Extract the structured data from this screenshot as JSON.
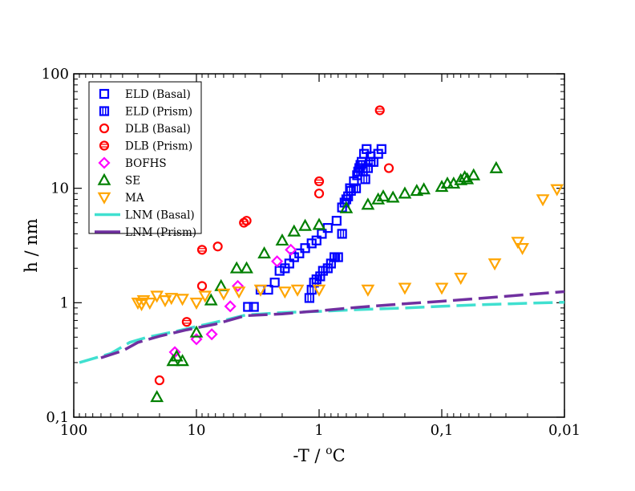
{
  "chart_data": {
    "type": "scatter",
    "xlabel": "-T /  ",
    "xlabel_sup": "o",
    "xlabel_unit": "C",
    "ylabel": "h / nm",
    "x_scale": "log",
    "x_reversed": true,
    "y_scale": "log",
    "xlim": [
      100,
      0.01
    ],
    "ylim": [
      0.1,
      100
    ],
    "xticks": [
      100,
      10,
      1,
      0.1,
      0.01
    ],
    "xtick_labels": [
      "100",
      "10",
      "1",
      "0,1",
      "0,01"
    ],
    "yticks": [
      0.1,
      1,
      10,
      100
    ],
    "ytick_labels": [
      "0,1",
      "1",
      "10",
      "100"
    ],
    "legend_position": "top-left",
    "series": [
      {
        "name": "ELD (Basal)",
        "color": "#0000ff",
        "marker": "square-open",
        "points": [
          [
            3.8,
            0.92
          ],
          [
            3.4,
            0.92
          ],
          [
            3.0,
            1.3
          ],
          [
            2.6,
            1.3
          ],
          [
            2.3,
            1.5
          ],
          [
            2.1,
            1.9
          ],
          [
            1.9,
            2.0
          ],
          [
            1.75,
            2.2
          ],
          [
            1.6,
            2.5
          ],
          [
            1.45,
            2.7
          ],
          [
            1.3,
            3.0
          ],
          [
            1.15,
            3.3
          ],
          [
            1.05,
            3.5
          ],
          [
            0.95,
            4.0
          ],
          [
            0.85,
            4.5
          ],
          [
            0.72,
            5.2
          ],
          [
            0.65,
            6.8
          ],
          [
            0.6,
            8.0
          ],
          [
            0.56,
            10.0
          ],
          [
            0.52,
            11.5
          ],
          [
            0.49,
            13.0
          ],
          [
            0.47,
            15.0
          ],
          [
            0.45,
            17.0
          ],
          [
            0.43,
            20.0
          ],
          [
            0.41,
            22.0
          ],
          [
            0.38,
            19.0
          ],
          [
            0.36,
            17.0
          ],
          [
            0.33,
            20.0
          ],
          [
            0.31,
            22.0
          ]
        ]
      },
      {
        "name": "ELD (Prism)",
        "color": "#0000ff",
        "marker": "square-striped",
        "points": [
          [
            1.2,
            1.1
          ],
          [
            1.15,
            1.3
          ],
          [
            1.1,
            1.5
          ],
          [
            1.05,
            1.6
          ],
          [
            0.98,
            1.7
          ],
          [
            0.93,
            1.9
          ],
          [
            0.85,
            2.0
          ],
          [
            0.8,
            2.2
          ],
          [
            0.75,
            2.5
          ],
          [
            0.7,
            2.5
          ],
          [
            0.65,
            4.0
          ],
          [
            0.62,
            7.5
          ],
          [
            0.58,
            8.5
          ],
          [
            0.55,
            9.5
          ],
          [
            0.5,
            10.0
          ],
          [
            0.48,
            14.0
          ],
          [
            0.46,
            16.0
          ],
          [
            0.44,
            14.0
          ],
          [
            0.42,
            12.0
          ],
          [
            0.4,
            15.0
          ],
          [
            0.38,
            17.0
          ]
        ]
      },
      {
        "name": "DLB (Basal)",
        "color": "#ff0000",
        "marker": "circle-open",
        "points": [
          [
            20,
            0.21
          ],
          [
            9,
            1.4
          ],
          [
            6.7,
            3.1
          ],
          [
            3.9,
            5.2
          ],
          [
            1.0,
            9.0
          ],
          [
            0.27,
            15.0
          ]
        ]
      },
      {
        "name": "DLB (Prism)",
        "color": "#ff0000",
        "marker": "circle-striped",
        "points": [
          [
            12,
            0.68
          ],
          [
            9,
            2.9
          ],
          [
            4.1,
            5.0
          ],
          [
            1.0,
            11.5
          ],
          [
            0.32,
            48.0
          ]
        ]
      },
      {
        "name": "BOFHS",
        "color": "#ff00ff",
        "marker": "diamond-open",
        "points": [
          [
            15,
            0.37
          ],
          [
            10,
            0.48
          ],
          [
            7.5,
            0.53
          ],
          [
            5.3,
            0.93
          ],
          [
            4.6,
            1.4
          ],
          [
            2.2,
            2.3
          ],
          [
            1.7,
            2.9
          ]
        ]
      },
      {
        "name": "SE",
        "color": "#008000",
        "marker": "triangle-up-open",
        "points": [
          [
            21,
            0.15
          ],
          [
            15.5,
            0.31
          ],
          [
            14.5,
            0.34
          ],
          [
            13,
            0.31
          ],
          [
            10,
            0.55
          ],
          [
            7.6,
            1.05
          ],
          [
            6.3,
            1.4
          ],
          [
            4.7,
            2.0
          ],
          [
            3.9,
            2.0
          ],
          [
            2.8,
            2.7
          ],
          [
            2.0,
            3.5
          ],
          [
            1.6,
            4.2
          ],
          [
            1.3,
            4.7
          ],
          [
            1.0,
            4.8
          ],
          [
            0.6,
            6.7
          ],
          [
            0.4,
            7.2
          ],
          [
            0.33,
            8.0
          ],
          [
            0.3,
            8.5
          ],
          [
            0.25,
            8.3
          ],
          [
            0.2,
            9.0
          ],
          [
            0.16,
            9.5
          ],
          [
            0.14,
            9.8
          ],
          [
            0.1,
            10.3
          ],
          [
            0.09,
            11.0
          ],
          [
            0.08,
            11.0
          ],
          [
            0.07,
            11.8
          ],
          [
            0.065,
            12.5
          ],
          [
            0.062,
            12.0
          ],
          [
            0.055,
            13.0
          ],
          [
            0.036,
            15.0
          ]
        ]
      },
      {
        "name": "MA",
        "color": "#ffa500",
        "marker": "triangle-down-open",
        "points": [
          [
            30,
            1.0
          ],
          [
            28,
            0.97
          ],
          [
            27,
            1.05
          ],
          [
            24,
            1.0
          ],
          [
            21,
            1.15
          ],
          [
            18,
            1.05
          ],
          [
            16,
            1.1
          ],
          [
            13,
            1.08
          ],
          [
            10,
            1.0
          ],
          [
            8.5,
            1.15
          ],
          [
            6,
            1.2
          ],
          [
            4.5,
            1.25
          ],
          [
            3.0,
            1.3
          ],
          [
            1.9,
            1.25
          ],
          [
            1.5,
            1.3
          ],
          [
            1.0,
            1.3
          ],
          [
            0.4,
            1.3
          ],
          [
            0.2,
            1.35
          ],
          [
            0.1,
            1.35
          ],
          [
            0.07,
            1.65
          ],
          [
            0.037,
            2.2
          ],
          [
            0.024,
            3.4
          ],
          [
            0.022,
            3.0
          ],
          [
            0.015,
            8.0
          ],
          [
            0.0115,
            9.8
          ]
        ]
      },
      {
        "name": "LNM (Basal)",
        "color": "#40e0d0",
        "marker": "line-dashed",
        "points": [
          [
            90,
            0.3
          ],
          [
            50,
            0.36
          ],
          [
            35,
            0.45
          ],
          [
            25,
            0.5
          ],
          [
            15,
            0.56
          ],
          [
            10,
            0.62
          ],
          [
            6,
            0.7
          ],
          [
            4,
            0.78
          ],
          [
            2,
            0.82
          ],
          [
            1,
            0.84
          ],
          [
            0.5,
            0.87
          ],
          [
            0.2,
            0.9
          ],
          [
            0.1,
            0.93
          ],
          [
            0.05,
            0.96
          ],
          [
            0.02,
            0.99
          ],
          [
            0.01,
            1.01
          ]
        ]
      },
      {
        "name": "LNM (Prism)",
        "color": "#7030a0",
        "marker": "line-dashed",
        "points": [
          [
            60,
            0.33
          ],
          [
            40,
            0.38
          ],
          [
            30,
            0.45
          ],
          [
            20,
            0.51
          ],
          [
            12,
            0.58
          ],
          [
            7,
            0.65
          ],
          [
            4,
            0.77
          ],
          [
            2,
            0.8
          ],
          [
            1,
            0.85
          ],
          [
            0.5,
            0.91
          ],
          [
            0.2,
            0.98
          ],
          [
            0.1,
            1.03
          ],
          [
            0.05,
            1.09
          ],
          [
            0.02,
            1.18
          ],
          [
            0.01,
            1.25
          ]
        ]
      }
    ]
  }
}
